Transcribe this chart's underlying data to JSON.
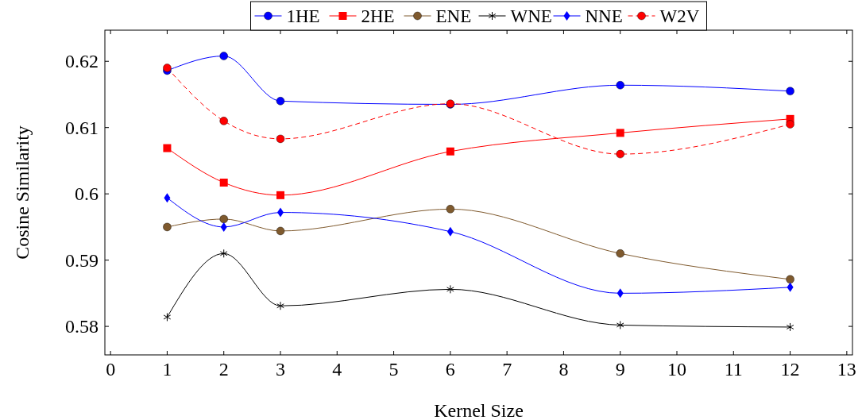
{
  "chart_data": {
    "type": "line",
    "xlabel": "Kernel Size",
    "ylabel": "Cosine Similarity",
    "x": [
      1,
      2,
      3,
      6,
      9,
      12
    ],
    "xlim": [
      -0.1,
      13.1
    ],
    "xticks": [
      0,
      1,
      2,
      3,
      4,
      5,
      6,
      7,
      8,
      9,
      10,
      11,
      12,
      13
    ],
    "ylim": [
      0.5757,
      0.6247
    ],
    "yticks": [
      0.58,
      0.59,
      {
        "value": 0.6,
        "label": "0.6"
      },
      0.61,
      0.62
    ],
    "legend": "top",
    "grid": false,
    "line_style": "solid",
    "series": [
      {
        "name": "1HE",
        "color": "#0000ff",
        "marker": "circle",
        "values": [
          0.6186,
          0.6208,
          0.614,
          0.6135,
          0.6164,
          0.6155
        ]
      },
      {
        "name": "2HE",
        "color": "#ff0000",
        "marker": "square",
        "values": [
          0.6069,
          0.6017,
          0.5998,
          0.6064,
          0.6092,
          0.6113
        ]
      },
      {
        "name": "ENE",
        "color": "#7f5a2e",
        "marker": "circle",
        "values": [
          0.595,
          0.5962,
          0.5944,
          0.5977,
          0.591,
          0.5871
        ]
      },
      {
        "name": "WNE",
        "color": "#000000",
        "marker": "cross",
        "values": [
          0.5814,
          0.591,
          0.5831,
          0.5856,
          0.5802,
          0.5799
        ]
      },
      {
        "name": "NNE",
        "color": "#0000ff",
        "marker": "diamond",
        "values": [
          0.5994,
          0.595,
          0.5972,
          0.5943,
          0.585,
          0.5859
        ]
      },
      {
        "name": "W2V",
        "color": "#ff0000",
        "marker": "circle",
        "line_style": "dashed",
        "values": [
          0.619,
          0.611,
          0.6083,
          0.6136,
          0.606,
          0.6105
        ]
      }
    ]
  }
}
